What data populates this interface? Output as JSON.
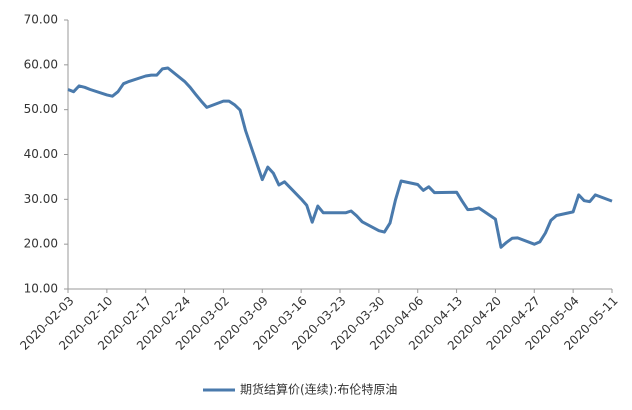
{
  "chart_data": {
    "type": "line",
    "x": [
      "2020-02-03",
      "2020-02-04",
      "2020-02-05",
      "2020-02-06",
      "2020-02-07",
      "2020-02-10",
      "2020-02-11",
      "2020-02-12",
      "2020-02-13",
      "2020-02-14",
      "2020-02-17",
      "2020-02-18",
      "2020-02-19",
      "2020-02-20",
      "2020-02-21",
      "2020-02-24",
      "2020-02-25",
      "2020-02-26",
      "2020-02-27",
      "2020-02-28",
      "2020-03-02",
      "2020-03-03",
      "2020-03-04",
      "2020-03-05",
      "2020-03-06",
      "2020-03-09",
      "2020-03-10",
      "2020-03-11",
      "2020-03-12",
      "2020-03-13",
      "2020-03-16",
      "2020-03-17",
      "2020-03-18",
      "2020-03-19",
      "2020-03-20",
      "2020-03-23",
      "2020-03-24",
      "2020-03-25",
      "2020-03-26",
      "2020-03-27",
      "2020-03-30",
      "2020-03-31",
      "2020-04-01",
      "2020-04-02",
      "2020-04-03",
      "2020-04-06",
      "2020-04-07",
      "2020-04-08",
      "2020-04-09",
      "2020-04-13",
      "2020-04-14",
      "2020-04-15",
      "2020-04-16",
      "2020-04-17",
      "2020-04-20",
      "2020-04-21",
      "2020-04-22",
      "2020-04-23",
      "2020-04-24",
      "2020-04-27",
      "2020-04-28",
      "2020-04-29",
      "2020-04-30",
      "2020-05-01",
      "2020-05-04",
      "2020-05-05",
      "2020-05-06",
      "2020-05-07",
      "2020-05-08",
      "2020-05-11"
    ],
    "series": [
      {
        "name": "期货结算价(连续):布伦特原油",
        "color": "#4a7aac",
        "values": [
          54.5,
          54.0,
          55.3,
          55.0,
          54.5,
          53.3,
          53.0,
          54.0,
          55.8,
          56.3,
          57.5,
          57.7,
          57.7,
          59.1,
          59.3,
          56.3,
          55.0,
          53.4,
          51.9,
          50.5,
          51.9,
          51.9,
          51.1,
          49.9,
          45.3,
          34.4,
          37.2,
          35.8,
          33.2,
          33.9,
          30.1,
          28.7,
          24.9,
          28.5,
          27.0,
          27.0,
          27.0,
          27.4,
          26.3,
          25.0,
          23.0,
          22.7,
          24.7,
          29.9,
          34.1,
          33.3,
          32.0,
          32.8,
          31.5,
          31.6,
          29.6,
          27.7,
          27.8,
          28.1,
          25.6,
          19.3,
          20.4,
          21.3,
          21.4,
          20.0,
          20.5,
          22.5,
          25.3,
          26.4,
          27.2,
          31.0,
          29.7,
          29.5,
          31.0,
          29.6
        ]
      }
    ],
    "xlim": [
      "2020-02-03",
      "2020-05-11"
    ],
    "xticks": [
      "2020-02-03",
      "2020-02-10",
      "2020-02-17",
      "2020-02-24",
      "2020-03-02",
      "2020-03-09",
      "2020-03-16",
      "2020-03-23",
      "2020-03-30",
      "2020-04-06",
      "2020-04-13",
      "2020-04-20",
      "2020-04-27",
      "2020-05-04",
      "2020-05-11"
    ],
    "ylim": [
      10,
      70
    ],
    "yticks": [
      {
        "value": 10,
        "label": "10.00"
      },
      {
        "value": 20,
        "label": "20.00"
      },
      {
        "value": 30,
        "label": "30.00"
      },
      {
        "value": 40,
        "label": "40.00"
      },
      {
        "value": 50,
        "label": "50.00"
      },
      {
        "value": 60,
        "label": "60.00"
      },
      {
        "value": 70,
        "label": "70.00"
      }
    ],
    "grid": false,
    "legend": "bottom"
  }
}
